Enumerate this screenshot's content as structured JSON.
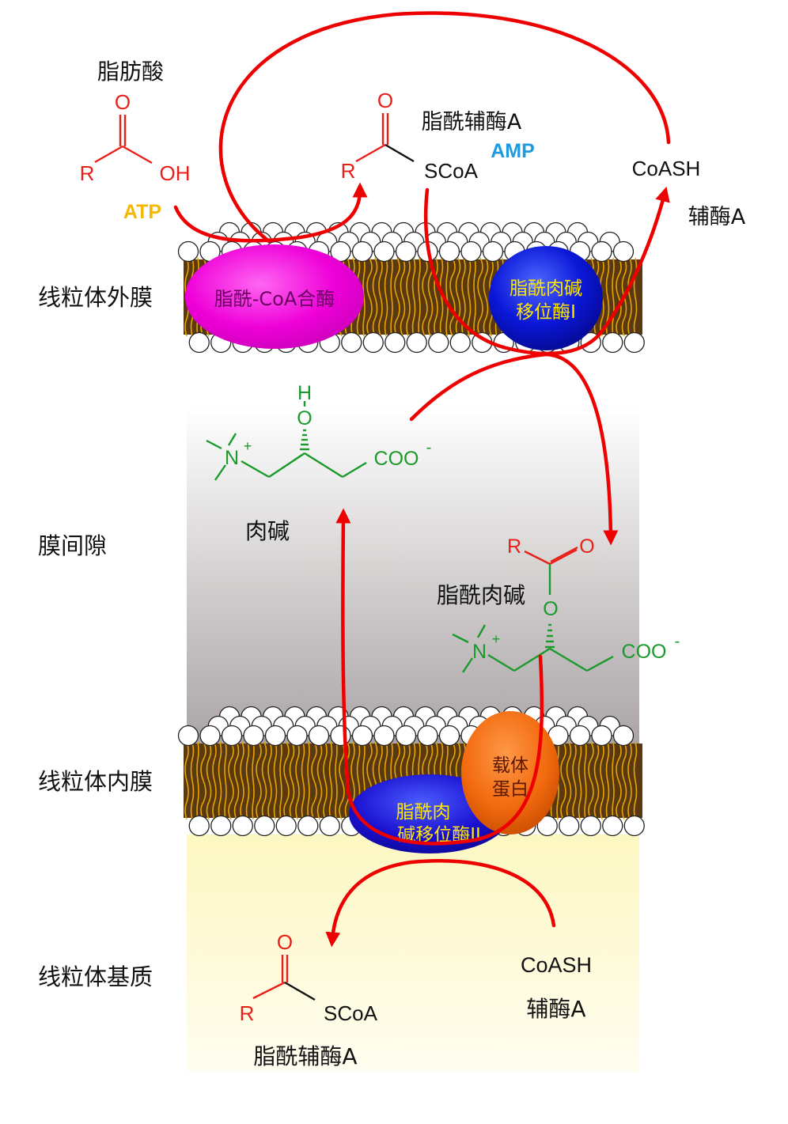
{
  "regions": {
    "outer_membrane": "线粒体外膜",
    "intermembrane_space": "膜间隙",
    "inner_membrane": "线粒体内膜",
    "matrix": "线粒体基质"
  },
  "molecules": {
    "fatty_acid": {
      "name": "脂肪酸",
      "R": "R",
      "O": "O",
      "OH": "OH"
    },
    "acyl_coa_top": {
      "name": "脂酰辅酶A",
      "R": "R",
      "O": "O",
      "SCoA": "SCoA"
    },
    "coash_top": {
      "formula": "CoASH",
      "name": "辅酶A"
    },
    "carnitine": {
      "name": "肉碱",
      "H": "H",
      "O": "O",
      "N": "N",
      "plus": "+",
      "COO": "COO",
      "minus": "-"
    },
    "acylcarnitine": {
      "name": "脂酰肉碱",
      "R": "R",
      "O_carbonyl": "O",
      "O_ester": "O",
      "N": "N",
      "plus": "+",
      "COO": "COO",
      "minus": "-"
    },
    "acyl_coa_matrix": {
      "name": "脂酰辅酶A",
      "R": "R",
      "O": "O",
      "SCoA": "SCoA"
    },
    "coash_matrix": {
      "formula": "CoASH",
      "name": "辅酶A"
    }
  },
  "cofactors": {
    "atp": "ATP",
    "amp": "AMP"
  },
  "enzymes": {
    "synthetase": "脂酰-CoA合酶",
    "cpt1": [
      "脂酰肉碱",
      "移位酶I"
    ],
    "cpt2": [
      "脂酰肉",
      "碱移位酶II"
    ],
    "carrier": [
      "载体",
      "蛋白"
    ]
  },
  "colors": {
    "arrow": "#ee0000",
    "atp": "#f5b800",
    "amp": "#1e9be0",
    "carnitine": "#1a9a2a",
    "acyl": "#e8201a",
    "synthetase": "#ee00d8",
    "cpt1": "#0a17d8",
    "cpt2": "#1a10d0",
    "carrier": "#f26a0e",
    "enzyme_text": "#ffe800",
    "lipid_tail": "#e4a500"
  }
}
